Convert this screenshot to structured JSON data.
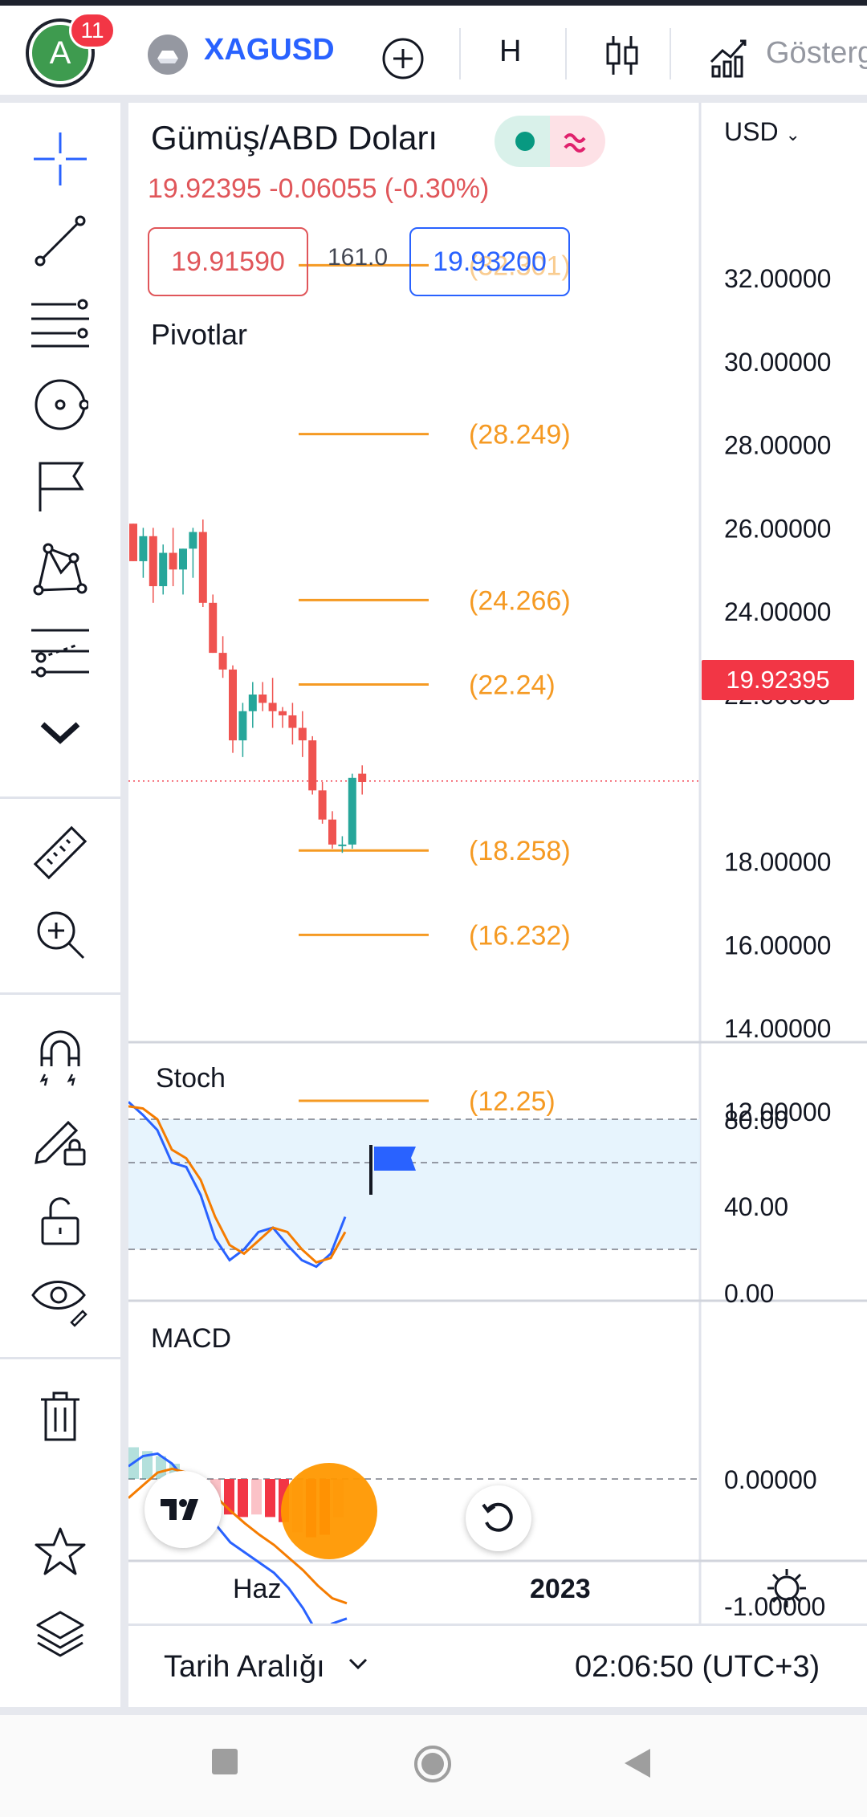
{
  "header": {
    "avatar_letter": "A",
    "notification_count": "11",
    "symbol": "XAGUSD",
    "interval": "H",
    "indicators_label": "Gösterg",
    "icons": [
      "add-icon",
      "candle-icon",
      "indicator-icon"
    ]
  },
  "legend": {
    "title": "Gümüş/ABD Doları",
    "price_line": "19.92395 -0.06055 (-0.30%)",
    "bid": "19.91590",
    "spread": "161.0",
    "ask": "19.93200",
    "pivots_label": "Pivotlar"
  },
  "axis": {
    "currency": "USD",
    "current_price": "19.92395",
    "colors": {
      "up": "#26a69a",
      "down": "#ef5350",
      "pivot": "#f59a23",
      "accent": "#2962ff"
    }
  },
  "pivot_labels": [
    "(32.301)",
    "(28.249)",
    "(24.266)",
    "(22.24)",
    "(18.258)",
    "(16.232)",
    "(12.25)"
  ],
  "sidebar": {
    "tools": [
      "crosshair-icon",
      "trend-line-icon",
      "fib-icon",
      "circle-icon",
      "flag-icon",
      "pattern-icon",
      "forecast-icon",
      "chevron-down-icon",
      "ruler-icon",
      "zoom-icon",
      "magnet-icon",
      "lock-drawing-icon",
      "unlock-icon",
      "eye-icon",
      "trash-icon",
      "star-icon",
      "layers-icon"
    ]
  },
  "panes": {
    "stoch_label": "Stoch",
    "macd_label": "MACD"
  },
  "time_axis": {
    "label_1": "Haz",
    "label_2": "2023"
  },
  "bottom": {
    "date_range": "Tarih Aralığı",
    "clock": "02:06:50 (UTC+3)"
  },
  "chart_data": [
    {
      "type": "candlestick",
      "title": "Gümüş/ABD Doları",
      "ylim": [
        11.0,
        33.0
      ],
      "yticks": [
        "32.00000",
        "30.00000",
        "28.00000",
        "26.00000",
        "24.00000",
        "22.00000",
        "18.00000",
        "16.00000",
        "14.00000",
        "12.00000"
      ],
      "ytick_values": [
        32,
        30,
        28,
        26,
        24,
        22,
        18,
        16,
        14,
        12
      ],
      "pivots": [
        32.301,
        28.249,
        24.266,
        22.24,
        18.258,
        16.232,
        12.25
      ],
      "current": 19.92395,
      "candles": [
        {
          "o": 26.1,
          "h": 26.1,
          "l": 25.2,
          "c": 25.2
        },
        {
          "o": 25.2,
          "h": 26.0,
          "l": 24.8,
          "c": 25.8
        },
        {
          "o": 25.8,
          "h": 26.0,
          "l": 24.2,
          "c": 24.6
        },
        {
          "o": 24.6,
          "h": 25.6,
          "l": 24.4,
          "c": 25.4
        },
        {
          "o": 25.4,
          "h": 26.0,
          "l": 24.6,
          "c": 25.0
        },
        {
          "o": 25.0,
          "h": 25.5,
          "l": 24.4,
          "c": 25.5
        },
        {
          "o": 25.5,
          "h": 26.0,
          "l": 24.8,
          "c": 25.9
        },
        {
          "o": 25.9,
          "h": 26.2,
          "l": 24.1,
          "c": 24.2
        },
        {
          "o": 24.2,
          "h": 24.4,
          "l": 23.0,
          "c": 23.0
        },
        {
          "o": 23.0,
          "h": 23.4,
          "l": 22.4,
          "c": 22.6
        },
        {
          "o": 22.6,
          "h": 22.7,
          "l": 20.6,
          "c": 20.9
        },
        {
          "o": 20.9,
          "h": 21.8,
          "l": 20.5,
          "c": 21.6
        },
        {
          "o": 21.6,
          "h": 22.3,
          "l": 21.2,
          "c": 22.0
        },
        {
          "o": 22.0,
          "h": 22.3,
          "l": 21.6,
          "c": 21.8
        },
        {
          "o": 21.8,
          "h": 22.4,
          "l": 21.2,
          "c": 21.6
        },
        {
          "o": 21.6,
          "h": 21.7,
          "l": 21.2,
          "c": 21.5
        },
        {
          "o": 21.5,
          "h": 21.8,
          "l": 20.8,
          "c": 21.2
        },
        {
          "o": 21.2,
          "h": 21.6,
          "l": 20.5,
          "c": 20.9
        },
        {
          "o": 20.9,
          "h": 21.0,
          "l": 19.6,
          "c": 19.7
        },
        {
          "o": 19.7,
          "h": 19.9,
          "l": 18.9,
          "c": 19.0
        },
        {
          "o": 19.0,
          "h": 19.2,
          "l": 18.3,
          "c": 18.4
        },
        {
          "o": 18.4,
          "h": 18.6,
          "l": 18.2,
          "c": 18.4
        },
        {
          "o": 18.4,
          "h": 20.1,
          "l": 18.3,
          "c": 20.0
        },
        {
          "o": 20.1,
          "h": 20.3,
          "l": 19.6,
          "c": 19.9
        }
      ]
    },
    {
      "type": "line",
      "title": "Stoch",
      "ylim": [
        0,
        100
      ],
      "yticks": [
        "80.00",
        "40.00",
        "0.00"
      ],
      "ytick_values": [
        80,
        40,
        0
      ],
      "bands": [
        80,
        60,
        20
      ],
      "series": [
        {
          "name": "",
          "color": "#2962ff",
          "values": [
            88,
            82,
            75,
            60,
            58,
            45,
            25,
            15,
            20,
            28,
            30,
            22,
            15,
            12,
            18,
            35
          ]
        },
        {
          "name": "",
          "color": "#f57c00",
          "values": [
            86,
            85,
            80,
            66,
            62,
            52,
            35,
            22,
            18,
            24,
            30,
            28,
            20,
            14,
            16,
            28
          ]
        }
      ]
    },
    {
      "type": "bar",
      "title": "MACD",
      "ylim": [
        -1.4,
        0.4
      ],
      "yticks": [
        "0.00000",
        "-1.00000"
      ],
      "ytick_values": [
        0,
        -1
      ],
      "histogram": [
        0.25,
        0.22,
        0.18,
        0.12,
        0.05,
        -0.1,
        -0.22,
        -0.28,
        -0.3,
        -0.28,
        -0.3,
        -0.34,
        -0.42,
        -0.46,
        -0.44,
        -0.3
      ],
      "series": [
        {
          "name": "",
          "color": "#2962ff",
          "values": [
            0.1,
            0.18,
            0.2,
            0.12,
            -0.02,
            -0.2,
            -0.36,
            -0.5,
            -0.58,
            -0.66,
            -0.74,
            -0.86,
            -1.02,
            -1.22,
            -1.14,
            -1.1
          ]
        },
        {
          "name": "",
          "color": "#f57c00",
          "values": [
            -0.15,
            -0.05,
            0.05,
            0.08,
            0.05,
            -0.05,
            -0.14,
            -0.25,
            -0.35,
            -0.44,
            -0.52,
            -0.62,
            -0.72,
            -0.84,
            -0.94,
            -0.98
          ]
        }
      ]
    }
  ]
}
